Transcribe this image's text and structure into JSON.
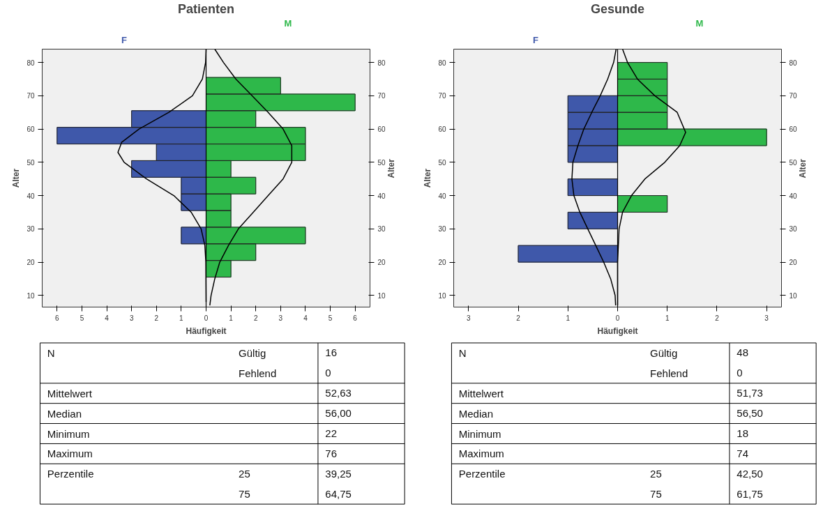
{
  "chart_data": [
    {
      "type": "bar",
      "orientation": "horizontal",
      "stacked": true,
      "title": "Patienten",
      "xlabel": "Häufigkeit",
      "ylabel": "Alter",
      "y2label": "Alter",
      "x": [
        18,
        23,
        28,
        33,
        38,
        43,
        48,
        53,
        58,
        63,
        68,
        73
      ],
      "series": [
        {
          "name": "F",
          "color": "#3f58aa",
          "values": [
            null,
            null,
            -1,
            null,
            -1,
            -1,
            -3,
            -2,
            -6,
            -3,
            null,
            null
          ]
        },
        {
          "name": "M",
          "color": "#2eb84a",
          "values": [
            1,
            2,
            4,
            1,
            1,
            2,
            1,
            4,
            4,
            2,
            6,
            3
          ]
        },
        {
          "type": "line",
          "color": "#000000",
          "x": [
            8,
            20,
            25,
            30,
            35,
            40,
            45,
            50,
            53,
            56,
            60,
            65,
            70,
            75,
            80,
            84
          ],
          "values": [
            0,
            -0.01,
            -0.05,
            -0.2,
            -0.6,
            -1.3,
            -2.4,
            -3.3,
            -3.55,
            -3.4,
            -2.7,
            -1.5,
            -0.55,
            -0.15,
            -0.02,
            0
          ]
        },
        {
          "type": "line",
          "color": "#000000",
          "x": [
            7,
            10,
            15,
            20,
            25,
            30,
            35,
            40,
            45,
            50,
            55,
            60,
            65,
            70,
            75,
            80,
            84
          ],
          "values": [
            0.15,
            0.2,
            0.35,
            0.55,
            0.9,
            1.3,
            1.9,
            2.5,
            3.1,
            3.45,
            3.45,
            3.1,
            2.5,
            1.85,
            1.2,
            0.7,
            0.35
          ]
        }
      ],
      "xlim": [
        -6.6,
        6.6
      ],
      "xticks": [
        {
          "value": -6,
          "label": "6"
        },
        {
          "value": -5,
          "label": "5"
        },
        {
          "value": -4,
          "label": "4"
        },
        {
          "value": -3,
          "label": "3"
        },
        {
          "value": -2,
          "label": "2"
        },
        {
          "value": -1,
          "label": "1"
        },
        0,
        1,
        2,
        3,
        4,
        5,
        6
      ],
      "ylim": [
        6.5,
        84
      ],
      "yticks": [
        10,
        20,
        30,
        40,
        50,
        60,
        70,
        80
      ],
      "y2lim": [
        6.5,
        84
      ],
      "y2ticks": [
        10,
        20,
        30,
        40,
        50,
        60,
        70,
        80
      ],
      "ref_lines": [
        {
          "axis": "x",
          "value": 0,
          "color": "#000000"
        }
      ]
    },
    {
      "type": "bar",
      "orientation": "horizontal",
      "stacked": true,
      "title": "Gesunde",
      "xlabel": "Häufigkeit",
      "ylabel": "Alter",
      "y2label": "Alter",
      "x": [
        22.5,
        27.5,
        32.5,
        37.5,
        42.5,
        47.5,
        52.5,
        57.5,
        62.5,
        67.5,
        72.5,
        77.5
      ],
      "series": [
        {
          "name": "F",
          "color": "#3f58aa",
          "values": [
            -2,
            null,
            -1,
            null,
            -1,
            null,
            -1,
            -1,
            -1,
            -1,
            null,
            null
          ]
        },
        {
          "name": "M",
          "color": "#2eb84a",
          "values": [
            null,
            null,
            null,
            1,
            null,
            null,
            null,
            3,
            1,
            1,
            1,
            1
          ]
        },
        {
          "type": "line",
          "color": "#000000",
          "x": [
            7,
            10,
            15,
            20,
            25,
            30,
            35,
            40,
            45,
            50,
            55,
            60,
            65,
            70,
            75,
            80,
            84
          ],
          "values": [
            -0.04,
            -0.05,
            -0.14,
            -0.28,
            -0.44,
            -0.6,
            -0.76,
            -0.88,
            -0.92,
            -0.9,
            -0.8,
            -0.68,
            -0.52,
            -0.35,
            -0.2,
            -0.08,
            -0.03
          ]
        },
        {
          "type": "line",
          "color": "#000000",
          "x": [
            7,
            20,
            30,
            35,
            40,
            45,
            50,
            55,
            59,
            65,
            70,
            75,
            80,
            84
          ],
          "values": [
            0,
            0,
            0.03,
            0.1,
            0.28,
            0.55,
            0.95,
            1.25,
            1.37,
            1.2,
            0.75,
            0.4,
            0.2,
            0.1
          ]
        }
      ],
      "xlim": [
        -3.3,
        3.3
      ],
      "xticks": [
        {
          "value": -3,
          "label": "3"
        },
        {
          "value": -2,
          "label": "2"
        },
        {
          "value": -1,
          "label": "1"
        },
        0,
        1,
        2,
        3
      ],
      "ylim": [
        6.5,
        84
      ],
      "yticks": [
        10,
        20,
        30,
        40,
        50,
        60,
        70,
        80
      ],
      "y2lim": [
        6.5,
        84
      ],
      "y2ticks": [
        10,
        20,
        30,
        40,
        50,
        60,
        70,
        80
      ],
      "ref_lines": [
        {
          "axis": "x",
          "value": 0,
          "color": "#000000"
        }
      ]
    },
    {
      "type": "other",
      "cell_labels": [
        [
          "N",
          "Gültig",
          "16"
        ],
        [
          null,
          "Fehlend",
          "0"
        ],
        [
          "Mittelwert",
          null,
          "52,63"
        ],
        [
          "Median",
          null,
          "56,00"
        ],
        [
          "Minimum",
          null,
          "22"
        ],
        [
          "Maximum",
          null,
          "76"
        ],
        [
          "Perzentile",
          "25",
          "39,25"
        ],
        [
          null,
          "75",
          "64,75"
        ]
      ]
    },
    {
      "type": "other",
      "cell_labels": [
        [
          "N",
          "Gültig",
          "48"
        ],
        [
          null,
          "Fehlend",
          "0"
        ],
        [
          "Mittelwert",
          null,
          "51,73"
        ],
        [
          "Median",
          null,
          "56,50"
        ],
        [
          "Minimum",
          null,
          "18"
        ],
        [
          "Maximum",
          null,
          "74"
        ],
        [
          "Perzentile",
          "25",
          "42,50"
        ],
        [
          null,
          "75",
          "61,75"
        ]
      ]
    }
  ]
}
